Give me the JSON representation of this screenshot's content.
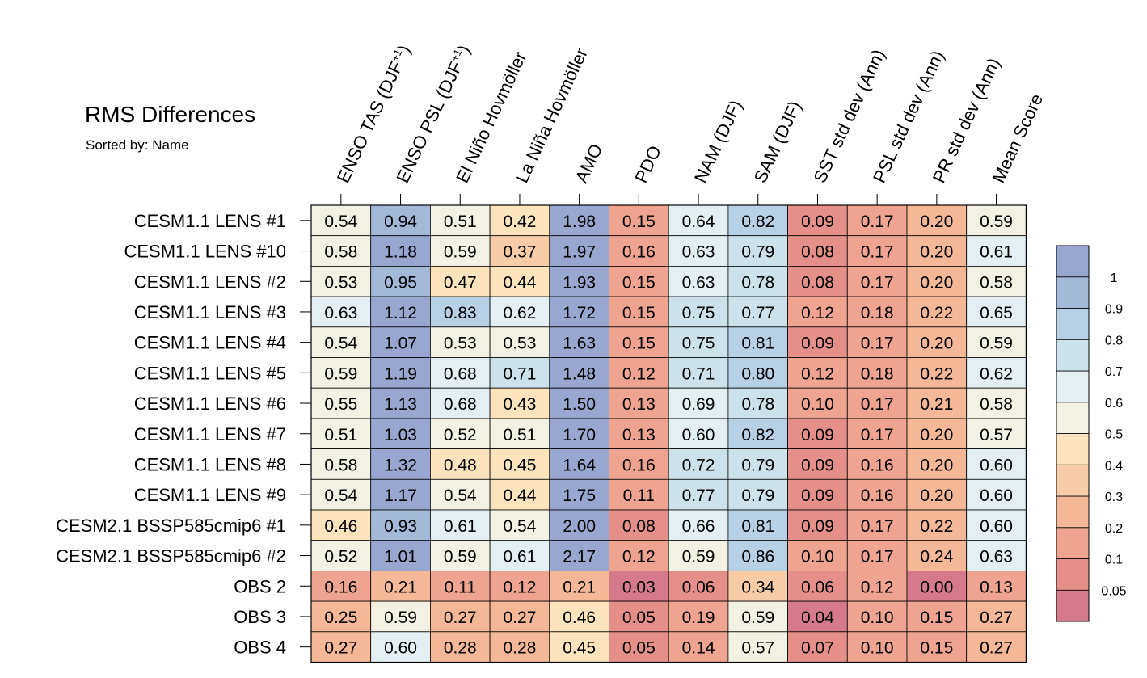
{
  "chart_data": {
    "type": "heatmap",
    "title": "RMS Differences",
    "subtitle": "Sorted by: Name",
    "columns": [
      {
        "label": "ENSO TAS (DJF",
        "sup": "+1",
        "close": ")"
      },
      {
        "label": "ENSO PSL (DJF",
        "sup": "+1",
        "close": ")"
      },
      {
        "label": "El Niño Hovmöller",
        "sup": "",
        "close": ""
      },
      {
        "label": "La Niña Hovmöller",
        "sup": "",
        "close": ""
      },
      {
        "label": "AMO",
        "sup": "",
        "close": ""
      },
      {
        "label": "PDO",
        "sup": "",
        "close": ""
      },
      {
        "label": "NAM (DJF)",
        "sup": "",
        "close": ""
      },
      {
        "label": "SAM (DJF)",
        "sup": "",
        "close": ""
      },
      {
        "label": "SST std dev (Ann)",
        "sup": "",
        "close": ""
      },
      {
        "label": "PSL std dev (Ann)",
        "sup": "",
        "close": ""
      },
      {
        "label": "PR std dev (Ann)",
        "sup": "",
        "close": ""
      },
      {
        "label": "Mean Score",
        "sup": "",
        "close": ""
      }
    ],
    "rows": [
      "CESM1.1 LENS #1",
      "CESM1.1 LENS #10",
      "CESM1.1 LENS #2",
      "CESM1.1 LENS #3",
      "CESM1.1 LENS #4",
      "CESM1.1 LENS #5",
      "CESM1.1 LENS #6",
      "CESM1.1 LENS #7",
      "CESM1.1 LENS #8",
      "CESM1.1 LENS #9",
      "CESM2.1 BSSP585cmip6 #1",
      "CESM2.1 BSSP585cmip6 #2",
      "OBS 2",
      "OBS 3",
      "OBS 4"
    ],
    "values": [
      [
        "0.54",
        "0.94",
        "0.51",
        "0.42",
        "1.98",
        "0.15",
        "0.64",
        "0.82",
        "0.09",
        "0.17",
        "0.20",
        "0.59"
      ],
      [
        "0.58",
        "1.18",
        "0.59",
        "0.37",
        "1.97",
        "0.16",
        "0.63",
        "0.79",
        "0.08",
        "0.17",
        "0.20",
        "0.61"
      ],
      [
        "0.53",
        "0.95",
        "0.47",
        "0.44",
        "1.93",
        "0.15",
        "0.63",
        "0.78",
        "0.08",
        "0.17",
        "0.20",
        "0.58"
      ],
      [
        "0.63",
        "1.12",
        "0.83",
        "0.62",
        "1.72",
        "0.15",
        "0.75",
        "0.77",
        "0.12",
        "0.18",
        "0.22",
        "0.65"
      ],
      [
        "0.54",
        "1.07",
        "0.53",
        "0.53",
        "1.63",
        "0.15",
        "0.75",
        "0.81",
        "0.09",
        "0.17",
        "0.20",
        "0.59"
      ],
      [
        "0.59",
        "1.19",
        "0.68",
        "0.71",
        "1.48",
        "0.12",
        "0.71",
        "0.80",
        "0.12",
        "0.18",
        "0.22",
        "0.62"
      ],
      [
        "0.55",
        "1.13",
        "0.68",
        "0.43",
        "1.50",
        "0.13",
        "0.69",
        "0.78",
        "0.10",
        "0.17",
        "0.21",
        "0.58"
      ],
      [
        "0.51",
        "1.03",
        "0.52",
        "0.51",
        "1.70",
        "0.13",
        "0.60",
        "0.82",
        "0.09",
        "0.17",
        "0.20",
        "0.57"
      ],
      [
        "0.58",
        "1.32",
        "0.48",
        "0.45",
        "1.64",
        "0.16",
        "0.72",
        "0.79",
        "0.09",
        "0.16",
        "0.20",
        "0.60"
      ],
      [
        "0.54",
        "1.17",
        "0.54",
        "0.44",
        "1.75",
        "0.11",
        "0.77",
        "0.79",
        "0.09",
        "0.16",
        "0.20",
        "0.60"
      ],
      [
        "0.46",
        "0.93",
        "0.61",
        "0.54",
        "2.00",
        "0.08",
        "0.66",
        "0.81",
        "0.09",
        "0.17",
        "0.22",
        "0.60"
      ],
      [
        "0.52",
        "1.01",
        "0.59",
        "0.61",
        "2.17",
        "0.12",
        "0.59",
        "0.86",
        "0.10",
        "0.17",
        "0.24",
        "0.63"
      ],
      [
        "0.16",
        "0.21",
        "0.11",
        "0.12",
        "0.21",
        "0.03",
        "0.06",
        "0.34",
        "0.06",
        "0.12",
        "0.00",
        "0.13"
      ],
      [
        "0.25",
        "0.59",
        "0.27",
        "0.27",
        "0.46",
        "0.05",
        "0.19",
        "0.59",
        "0.04",
        "0.10",
        "0.15",
        "0.27"
      ],
      [
        "0.27",
        "0.60",
        "0.28",
        "0.28",
        "0.45",
        "0.05",
        "0.14",
        "0.57",
        "0.07",
        "0.10",
        "0.15",
        "0.27"
      ]
    ],
    "colorbar": {
      "levels": [
        0.05,
        0.1,
        0.2,
        0.3,
        0.4,
        0.5,
        0.6,
        0.7,
        0.8,
        0.9,
        1
      ],
      "tick_labels": [
        "0.05",
        "0.1",
        "0.2",
        "0.3",
        "0.4",
        "0.5",
        "0.6",
        "0.7",
        "0.8",
        "0.9",
        "1"
      ],
      "colors": [
        "#d47a8c",
        "#e49088",
        "#eea48e",
        "#f4b896",
        "#f7cca6",
        "#fbe3bb",
        "#f2f1e4",
        "#e3eff2",
        "#cde1ea",
        "#b7d0e3",
        "#a4b8d8",
        "#98a6d1"
      ]
    }
  }
}
